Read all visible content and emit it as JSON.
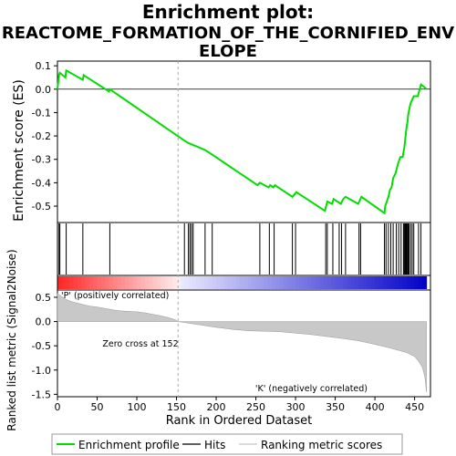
{
  "chart_data": {
    "type": "line",
    "title_line1": "Enrichment plot:",
    "title_line2": "REACTOME_FORMATION_OF_THE_CORNIFIED_ENV",
    "title_line3": "ELOPE",
    "es_panel": {
      "ylabel": "Enrichment score (ES)",
      "ylim": [
        -0.57,
        0.12
      ],
      "yticks": [
        "0.1",
        "0.0",
        "-0.1",
        "-0.2",
        "-0.3",
        "-0.4",
        "-0.5"
      ],
      "yticks_values": [
        0.1,
        0.0,
        -0.1,
        -0.2,
        -0.3,
        -0.4,
        -0.5
      ],
      "grid": false,
      "enrichment_profile": {
        "x": [
          0,
          2,
          3,
          10,
          11,
          32,
          33,
          65,
          66,
          160,
          165,
          186,
          195,
          252,
          255,
          266,
          268,
          272,
          274,
          296,
          301,
          337,
          340,
          346,
          348,
          357,
          360,
          363,
          379,
          383,
          412,
          413,
          417,
          419,
          421,
          423,
          426,
          429,
          432,
          435,
          437,
          438,
          439,
          440,
          441,
          442,
          443,
          445,
          449,
          454,
          458,
          462,
          465
        ],
        "y": [
          0.0,
          0.06,
          0.07,
          0.05,
          0.08,
          0.04,
          0.06,
          -0.01,
          0.0,
          -0.22,
          -0.23,
          -0.26,
          -0.28,
          -0.41,
          -0.4,
          -0.42,
          -0.41,
          -0.42,
          -0.41,
          -0.46,
          -0.44,
          -0.52,
          -0.48,
          -0.49,
          -0.47,
          -0.49,
          -0.47,
          -0.46,
          -0.49,
          -0.46,
          -0.53,
          -0.5,
          -0.46,
          -0.43,
          -0.42,
          -0.38,
          -0.36,
          -0.32,
          -0.29,
          -0.29,
          -0.25,
          -0.22,
          -0.19,
          -0.16,
          -0.14,
          -0.11,
          -0.09,
          -0.06,
          -0.03,
          -0.03,
          0.02,
          0.01,
          0.0
        ]
      }
    },
    "hits": [
      2,
      3,
      11,
      32,
      66,
      160,
      165,
      167,
      169,
      171,
      186,
      195,
      255,
      267,
      273,
      296,
      300,
      338,
      340,
      347,
      355,
      358,
      363,
      380,
      382,
      412,
      414,
      417,
      420,
      423,
      427,
      430,
      433,
      436,
      437,
      438,
      439,
      440,
      441,
      442,
      443,
      445,
      447,
      449,
      455,
      458
    ],
    "rank_panel": {
      "ylabel": "Ranked list metric (Signal2Noise)",
      "ylim": [
        -1.55,
        0.65
      ],
      "yticks": [
        "0.5",
        "0.0",
        "-0.5",
        "-1.0",
        "-1.5"
      ],
      "yticks_values": [
        0.5,
        0.0,
        -0.5,
        -1.0,
        -1.5
      ],
      "metric_profile": {
        "x": [
          0,
          5,
          10,
          20,
          30,
          40,
          50,
          60,
          70,
          80,
          90,
          100,
          110,
          120,
          130,
          140,
          148,
          152,
          160,
          180,
          200,
          220,
          240,
          260,
          280,
          300,
          320,
          340,
          360,
          380,
          400,
          420,
          440,
          450,
          455,
          460,
          463,
          465
        ],
        "y": [
          0.58,
          0.52,
          0.46,
          0.4,
          0.36,
          0.32,
          0.3,
          0.27,
          0.24,
          0.22,
          0.21,
          0.2,
          0.18,
          0.15,
          0.12,
          0.08,
          0.04,
          0.0,
          -0.02,
          -0.07,
          -0.12,
          -0.16,
          -0.19,
          -0.2,
          -0.21,
          -0.24,
          -0.27,
          -0.31,
          -0.35,
          -0.4,
          -0.47,
          -0.55,
          -0.64,
          -0.72,
          -0.82,
          -0.95,
          -1.15,
          -1.45
        ]
      },
      "pos_label": "'P' (positively correlated)",
      "neg_label": "'K' (negatively correlated)",
      "zero_cross_label": "Zero cross at 152",
      "zero_cross": 152
    },
    "xlabel": "Rank in Ordered Dataset",
    "xlim": [
      0,
      470
    ],
    "xticks": [
      "0",
      "50",
      "100",
      "150",
      "200",
      "250",
      "300",
      "350",
      "400",
      "450"
    ],
    "xticks_values": [
      0,
      50,
      100,
      150,
      200,
      250,
      300,
      350,
      400,
      450
    ],
    "n_genes": 465,
    "legend": {
      "placement": "bottom",
      "items": [
        "Enrichment profile",
        "Hits",
        "Ranking metric scores"
      ]
    },
    "colors": {
      "enrichment": "#00dd00",
      "hits": "#000000",
      "metric_fill": "#c8c8c8",
      "pos_label": "#ff0000",
      "neg_label": "#0000ff",
      "dashed": "#aaaaaa"
    }
  }
}
